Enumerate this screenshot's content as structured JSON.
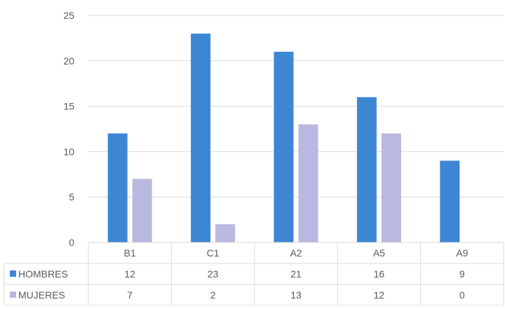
{
  "chart_data": {
    "type": "bar",
    "title": "",
    "xlabel": "",
    "ylabel": "",
    "categories": [
      "B1",
      "C1",
      "A2",
      "A5",
      "A9"
    ],
    "series": [
      {
        "name": "HOMBRES",
        "values": [
          12,
          23,
          21,
          16,
          9
        ],
        "color": "#3d86d4"
      },
      {
        "name": "MUJERES",
        "values": [
          7,
          2,
          13,
          12,
          0
        ],
        "color": "#b8b8e0"
      }
    ],
    "ylim": [
      0,
      25
    ],
    "yticks": [
      0,
      5,
      10,
      15,
      20,
      25
    ],
    "grid": true,
    "legend": "data-table-left",
    "data_table": true,
    "colors": {
      "grid": "#d9d9d9",
      "axis_text": "#595959",
      "table_border": "#d9d9d9"
    }
  }
}
